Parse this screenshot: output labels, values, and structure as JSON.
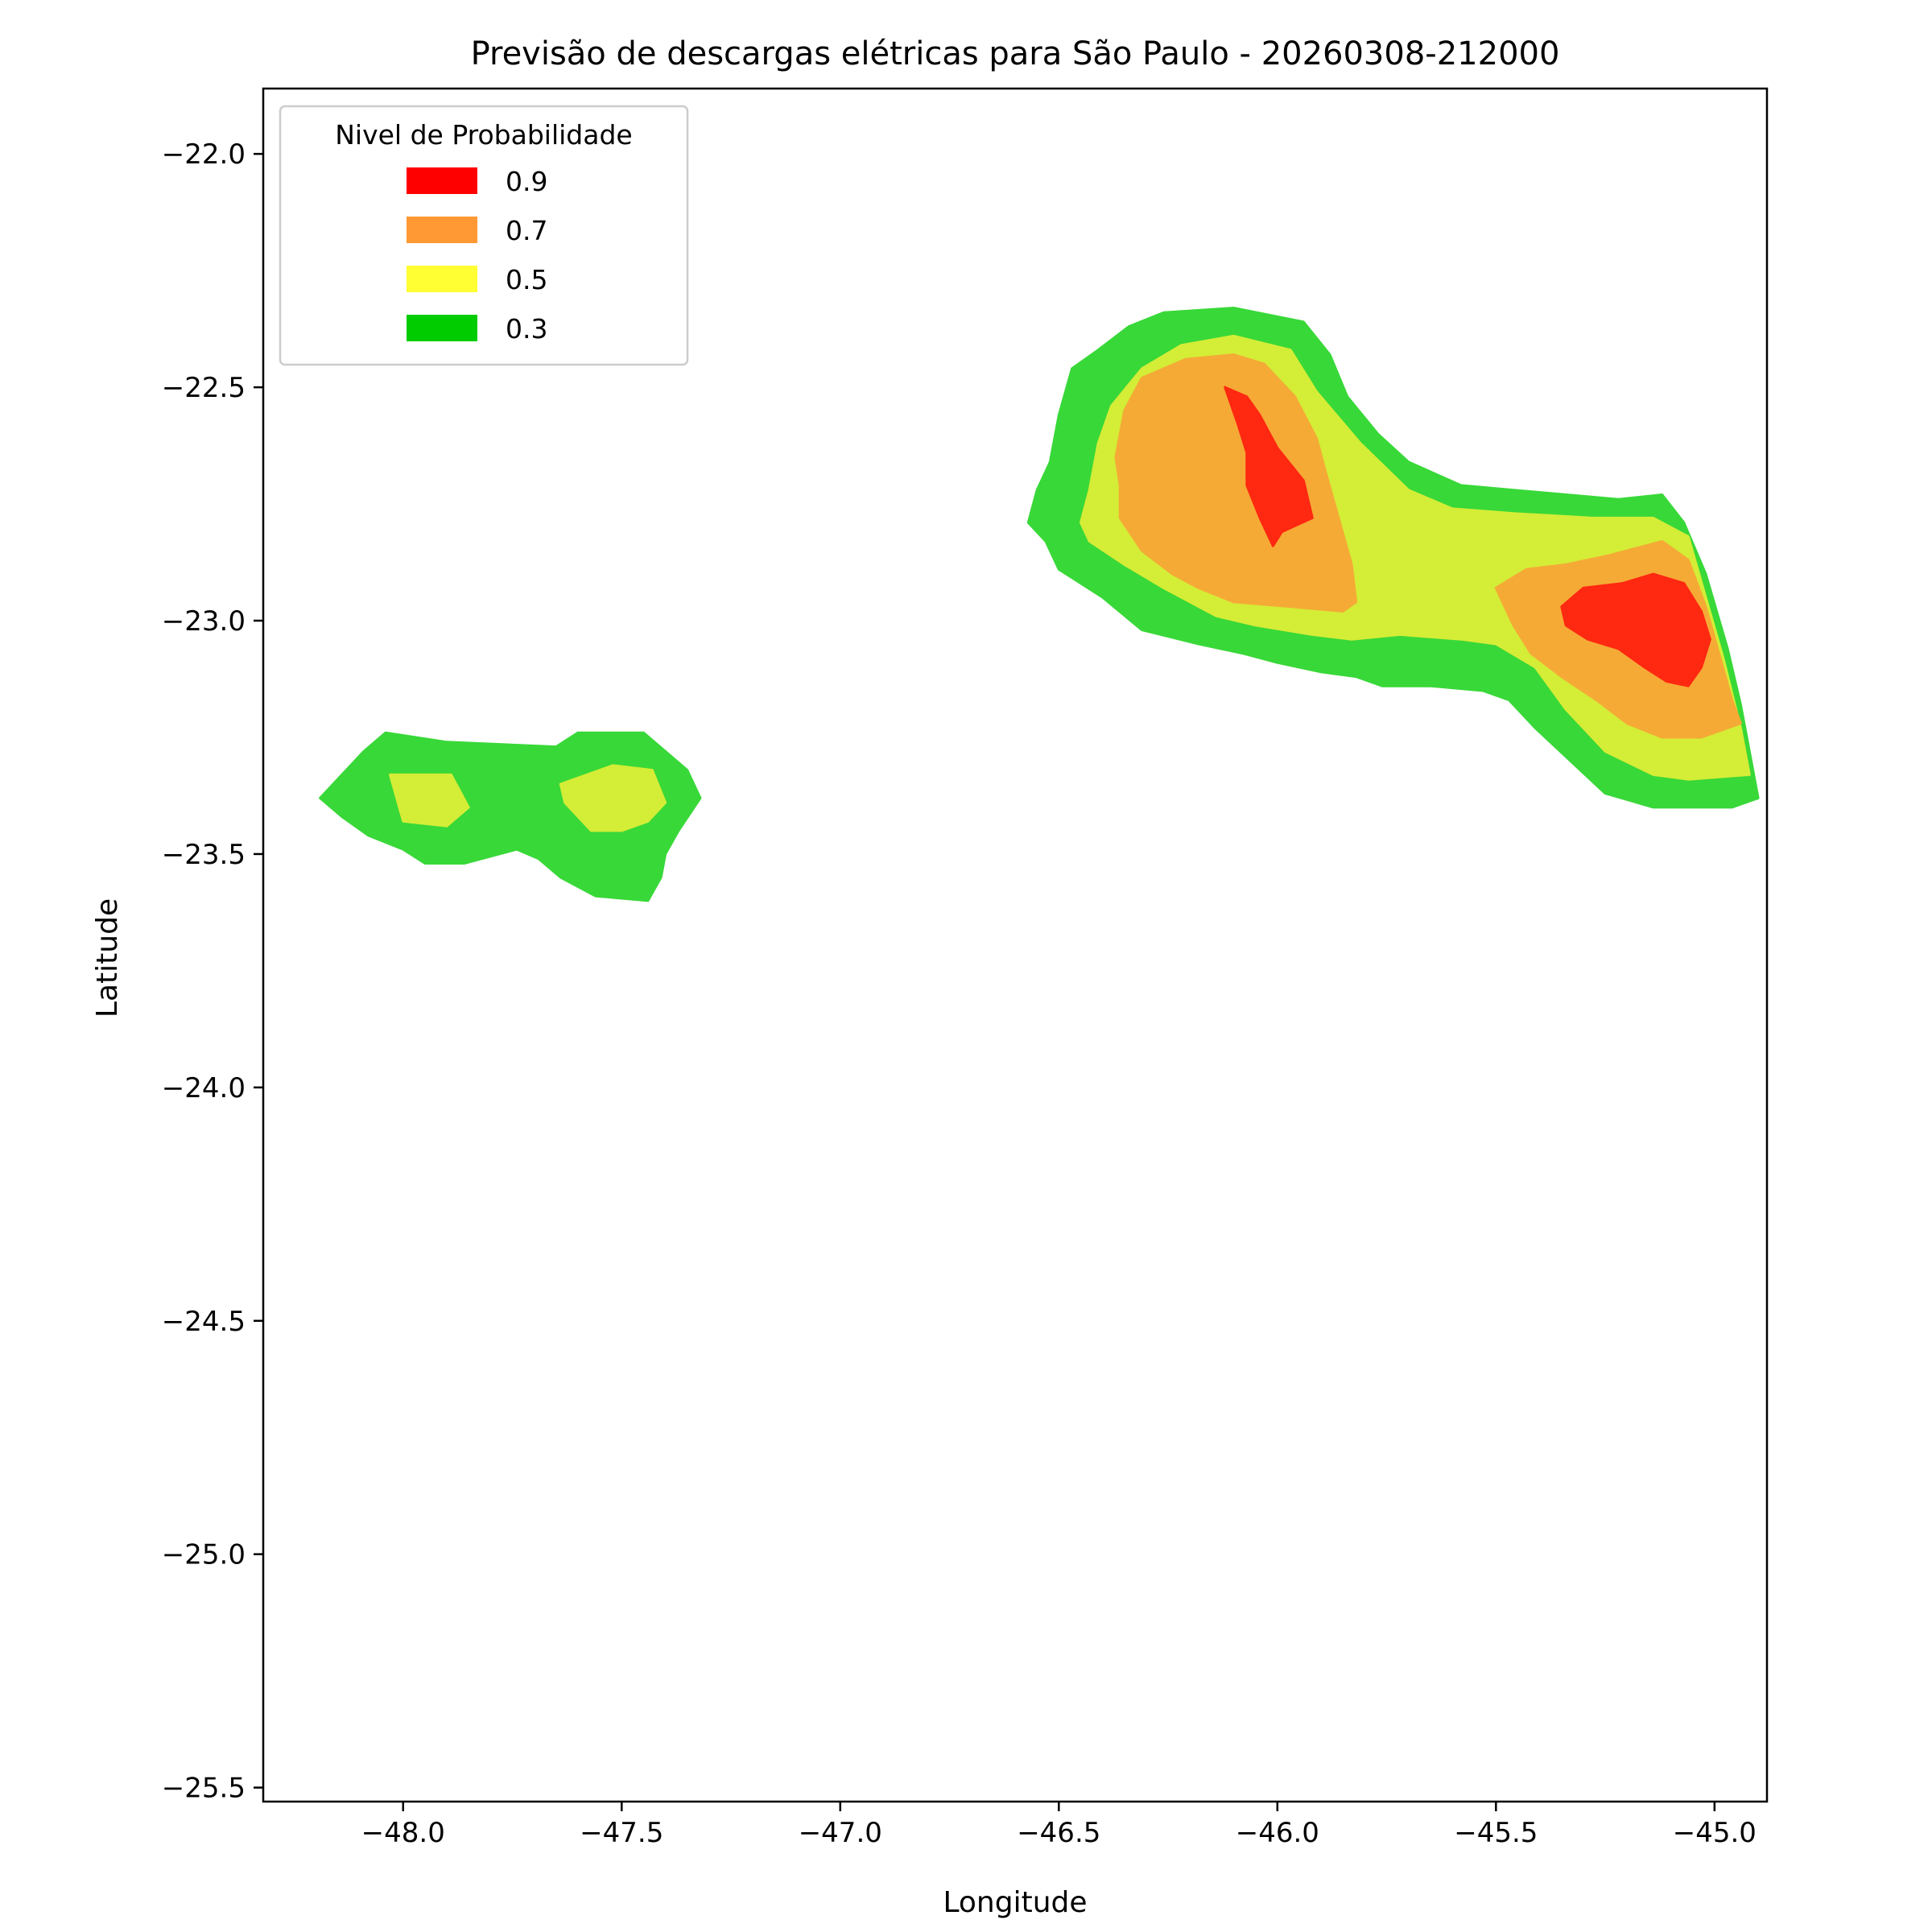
{
  "chart_data": {
    "type": "contour",
    "title": "Previsão de descargas elétricas para São Paulo - 20260308-212000",
    "xlabel": "Longitude",
    "ylabel": "Latitude",
    "xlim": [
      -48.32,
      -44.88
    ],
    "ylim": [
      -25.53,
      -21.86
    ],
    "x_ticks": [
      -48.0,
      -47.5,
      -47.0,
      -46.5,
      -46.0,
      -45.5,
      -45.0
    ],
    "x_tick_labels": [
      "−48.0",
      "−47.5",
      "−47.0",
      "−46.5",
      "−46.0",
      "−45.5",
      "−45.0"
    ],
    "y_ticks": [
      -22.0,
      -22.5,
      -23.0,
      -23.5,
      -24.0,
      -24.5,
      -25.0,
      -25.5
    ],
    "y_tick_labels": [
      "−22.0",
      "−22.5",
      "−23.0",
      "−23.5",
      "−24.0",
      "−24.5",
      "−25.0",
      "−25.5"
    ],
    "grid": false,
    "legend": {
      "title": "Nivel de Probabilidade",
      "position": "upper-left",
      "entries": [
        {
          "label": "0.9",
          "color": "#ff0000"
        },
        {
          "label": "0.7",
          "color": "#ff9933"
        },
        {
          "label": "0.5",
          "color": "#ffff33"
        },
        {
          "label": "0.3",
          "color": "#00cc00"
        }
      ]
    },
    "levels": [
      {
        "level": 0.3,
        "color": "#38d838",
        "regions": [
          [
            [
              -48.19,
              -23.38
            ],
            [
              -48.14,
              -23.33
            ],
            [
              -48.09,
              -23.28
            ],
            [
              -48.04,
              -23.24
            ],
            [
              -47.9,
              -23.26
            ],
            [
              -47.65,
              -23.27
            ],
            [
              -47.6,
              -23.24
            ],
            [
              -47.45,
              -23.24
            ],
            [
              -47.4,
              -23.28
            ],
            [
              -47.35,
              -23.32
            ],
            [
              -47.32,
              -23.38
            ],
            [
              -47.37,
              -23.45
            ],
            [
              -47.4,
              -23.5
            ],
            [
              -47.41,
              -23.55
            ],
            [
              -47.44,
              -23.6
            ],
            [
              -47.56,
              -23.59
            ],
            [
              -47.64,
              -23.55
            ],
            [
              -47.69,
              -23.51
            ],
            [
              -47.74,
              -23.49
            ],
            [
              -47.86,
              -23.52
            ],
            [
              -47.95,
              -23.52
            ],
            [
              -48.0,
              -23.49
            ],
            [
              -48.08,
              -23.46
            ],
            [
              -48.14,
              -23.42
            ]
          ],
          [
            [
              -46.57,
              -22.79
            ],
            [
              -46.55,
              -22.72
            ],
            [
              -46.52,
              -22.66
            ],
            [
              -46.5,
              -22.56
            ],
            [
              -46.47,
              -22.46
            ],
            [
              -46.41,
              -22.42
            ],
            [
              -46.34,
              -22.37
            ],
            [
              -46.26,
              -22.34
            ],
            [
              -46.1,
              -22.33
            ],
            [
              -45.94,
              -22.36
            ],
            [
              -45.88,
              -22.43
            ],
            [
              -45.84,
              -22.52
            ],
            [
              -45.77,
              -22.6
            ],
            [
              -45.7,
              -22.66
            ],
            [
              -45.58,
              -22.71
            ],
            [
              -45.46,
              -22.72
            ],
            [
              -45.22,
              -22.74
            ],
            [
              -45.12,
              -22.73
            ],
            [
              -45.07,
              -22.79
            ],
            [
              -45.02,
              -22.9
            ],
            [
              -44.97,
              -23.06
            ],
            [
              -44.94,
              -23.18
            ],
            [
              -44.92,
              -23.28
            ],
            [
              -44.9,
              -23.38
            ],
            [
              -44.96,
              -23.4
            ],
            [
              -45.08,
              -23.4
            ],
            [
              -45.14,
              -23.4
            ],
            [
              -45.25,
              -23.37
            ],
            [
              -45.33,
              -23.3
            ],
            [
              -45.41,
              -23.23
            ],
            [
              -45.47,
              -23.17
            ],
            [
              -45.53,
              -23.15
            ],
            [
              -45.65,
              -23.14
            ],
            [
              -45.76,
              -23.14
            ],
            [
              -45.82,
              -23.12
            ],
            [
              -45.9,
              -23.11
            ],
            [
              -46.0,
              -23.09
            ],
            [
              -46.08,
              -23.07
            ],
            [
              -46.18,
              -23.05
            ],
            [
              -46.31,
              -23.02
            ],
            [
              -46.4,
              -22.95
            ],
            [
              -46.5,
              -22.89
            ],
            [
              -46.53,
              -22.83
            ]
          ]
        ]
      },
      {
        "level": 0.5,
        "color": "#d4ed36",
        "regions": [
          [
            [
              -48.03,
              -23.33
            ],
            [
              -47.89,
              -23.33
            ],
            [
              -47.85,
              -23.4
            ],
            [
              -47.9,
              -23.44
            ],
            [
              -48.0,
              -23.43
            ]
          ],
          [
            [
              -47.64,
              -23.35
            ],
            [
              -47.52,
              -23.31
            ],
            [
              -47.43,
              -23.32
            ],
            [
              -47.4,
              -23.39
            ],
            [
              -47.44,
              -23.43
            ],
            [
              -47.5,
              -23.45
            ],
            [
              -47.57,
              -23.45
            ],
            [
              -47.63,
              -23.39
            ]
          ],
          [
            [
              -46.45,
              -22.79
            ],
            [
              -46.43,
              -22.72
            ],
            [
              -46.41,
              -22.62
            ],
            [
              -46.38,
              -22.54
            ],
            [
              -46.31,
              -22.46
            ],
            [
              -46.22,
              -22.41
            ],
            [
              -46.1,
              -22.39
            ],
            [
              -45.97,
              -22.42
            ],
            [
              -45.91,
              -22.51
            ],
            [
              -45.81,
              -22.62
            ],
            [
              -45.7,
              -22.72
            ],
            [
              -45.6,
              -22.76
            ],
            [
              -45.46,
              -22.77
            ],
            [
              -45.28,
              -22.78
            ],
            [
              -45.14,
              -22.78
            ],
            [
              -45.06,
              -22.82
            ],
            [
              -45.02,
              -22.95
            ],
            [
              -44.98,
              -23.08
            ],
            [
              -44.94,
              -23.23
            ],
            [
              -44.92,
              -23.33
            ],
            [
              -45.06,
              -23.34
            ],
            [
              -45.14,
              -23.33
            ],
            [
              -45.25,
              -23.28
            ],
            [
              -45.34,
              -23.19
            ],
            [
              -45.41,
              -23.1
            ],
            [
              -45.5,
              -23.05
            ],
            [
              -45.58,
              -23.04
            ],
            [
              -45.72,
              -23.03
            ],
            [
              -45.83,
              -23.04
            ],
            [
              -45.92,
              -23.03
            ],
            [
              -46.05,
              -23.01
            ],
            [
              -46.14,
              -22.99
            ],
            [
              -46.2,
              -22.96
            ],
            [
              -46.26,
              -22.93
            ],
            [
              -46.35,
              -22.88
            ],
            [
              -46.43,
              -22.83
            ]
          ]
        ]
      },
      {
        "level": 0.7,
        "color": "#f5aa36",
        "regions": [
          [
            [
              -46.37,
              -22.65
            ],
            [
              -46.35,
              -22.55
            ],
            [
              -46.31,
              -22.48
            ],
            [
              -46.21,
              -22.44
            ],
            [
              -46.1,
              -22.43
            ],
            [
              -46.03,
              -22.45
            ],
            [
              -45.96,
              -22.52
            ],
            [
              -45.91,
              -22.61
            ],
            [
              -45.89,
              -22.68
            ],
            [
              -45.86,
              -22.78
            ],
            [
              -45.83,
              -22.88
            ],
            [
              -45.82,
              -22.96
            ],
            [
              -45.85,
              -22.98
            ],
            [
              -45.97,
              -22.97
            ],
            [
              -46.1,
              -22.96
            ],
            [
              -46.18,
              -22.93
            ],
            [
              -46.24,
              -22.9
            ],
            [
              -46.31,
              -22.85
            ],
            [
              -46.36,
              -22.78
            ],
            [
              -46.36,
              -22.71
            ]
          ],
          [
            [
              -45.5,
              -22.93
            ],
            [
              -45.43,
              -22.89
            ],
            [
              -45.34,
              -22.88
            ],
            [
              -45.24,
              -22.86
            ],
            [
              -45.12,
              -22.83
            ],
            [
              -45.06,
              -22.87
            ],
            [
              -45.02,
              -22.97
            ],
            [
              -44.99,
              -23.07
            ],
            [
              -44.96,
              -23.17
            ],
            [
              -44.94,
              -23.22
            ],
            [
              -45.03,
              -23.25
            ],
            [
              -45.12,
              -23.25
            ],
            [
              -45.2,
              -23.22
            ],
            [
              -45.27,
              -23.17
            ],
            [
              -45.35,
              -23.12
            ],
            [
              -45.42,
              -23.07
            ],
            [
              -45.46,
              -23.01
            ]
          ]
        ]
      },
      {
        "level": 0.9,
        "color": "#ff2810",
        "regions": [
          [
            [
              -46.12,
              -22.5
            ],
            [
              -46.09,
              -22.58
            ],
            [
              -46.07,
              -22.64
            ],
            [
              -46.07,
              -22.71
            ],
            [
              -46.04,
              -22.78
            ],
            [
              -46.03,
              -22.8
            ],
            [
              -46.01,
              -22.84
            ],
            [
              -45.99,
              -22.81
            ],
            [
              -45.92,
              -22.78
            ],
            [
              -45.94,
              -22.7
            ],
            [
              -46.0,
              -22.63
            ],
            [
              -46.04,
              -22.56
            ],
            [
              -46.07,
              -22.52
            ]
          ],
          [
            [
              -45.35,
              -22.97
            ],
            [
              -45.3,
              -22.93
            ],
            [
              -45.21,
              -22.92
            ],
            [
              -45.14,
              -22.9
            ],
            [
              -45.07,
              -22.92
            ],
            [
              -45.03,
              -22.98
            ],
            [
              -45.01,
              -23.04
            ],
            [
              -45.03,
              -23.1
            ],
            [
              -45.06,
              -23.14
            ],
            [
              -45.11,
              -23.13
            ],
            [
              -45.16,
              -23.1
            ],
            [
              -45.22,
              -23.06
            ],
            [
              -45.29,
              -23.04
            ],
            [
              -45.34,
              -23.01
            ]
          ]
        ]
      }
    ]
  }
}
